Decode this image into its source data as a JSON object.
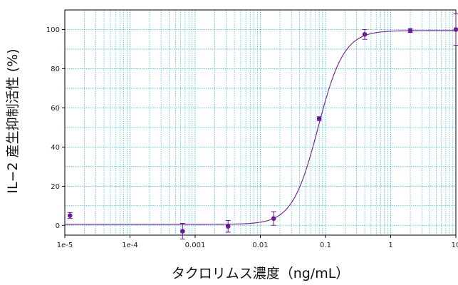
{
  "chart_data": {
    "type": "scatter",
    "title": "",
    "xlabel": "タクロリムス濃度（ng/mL）",
    "ylabel": "IL−2 産生抑制活性 (%)",
    "x_scale": "log",
    "xlim": [
      1e-05,
      10
    ],
    "ylim": [
      -5,
      110
    ],
    "x_ticks": [
      1e-05,
      0.0001,
      0.001,
      0.01,
      0.1,
      1,
      10
    ],
    "x_tick_labels": [
      "1e-5",
      "1e-4",
      "0.001",
      "0.01",
      "0.1",
      "1",
      "10"
    ],
    "y_ticks": [
      0,
      20,
      40,
      60,
      80,
      100
    ],
    "y_tick_labels": [
      "0",
      "20",
      "40",
      "60",
      "80",
      "100"
    ],
    "grid": true,
    "grid_color": "#33bbdd",
    "point_color": "#6a1b9a",
    "curve_color": "#7b2d8e",
    "series": [
      {
        "points": [
          {
            "x": 1.2e-05,
            "y": 5,
            "err": 1.5
          },
          {
            "x": 0.00064,
            "y": -3,
            "err": 4
          },
          {
            "x": 0.0032,
            "y": -0.5,
            "err": 3
          },
          {
            "x": 0.016,
            "y": 3.5,
            "err": 3.5
          },
          {
            "x": 0.08,
            "y": 54.5,
            "err": 1
          },
          {
            "x": 0.4,
            "y": 97.5,
            "err": 2.5
          },
          {
            "x": 2,
            "y": 99.5,
            "err": 1
          },
          {
            "x": 10,
            "y": 100,
            "err": 8
          }
        ]
      }
    ],
    "fit_curve": {
      "bottom": 0.5,
      "top": 99.5,
      "ec50": 0.077,
      "hill": 2.2
    }
  }
}
